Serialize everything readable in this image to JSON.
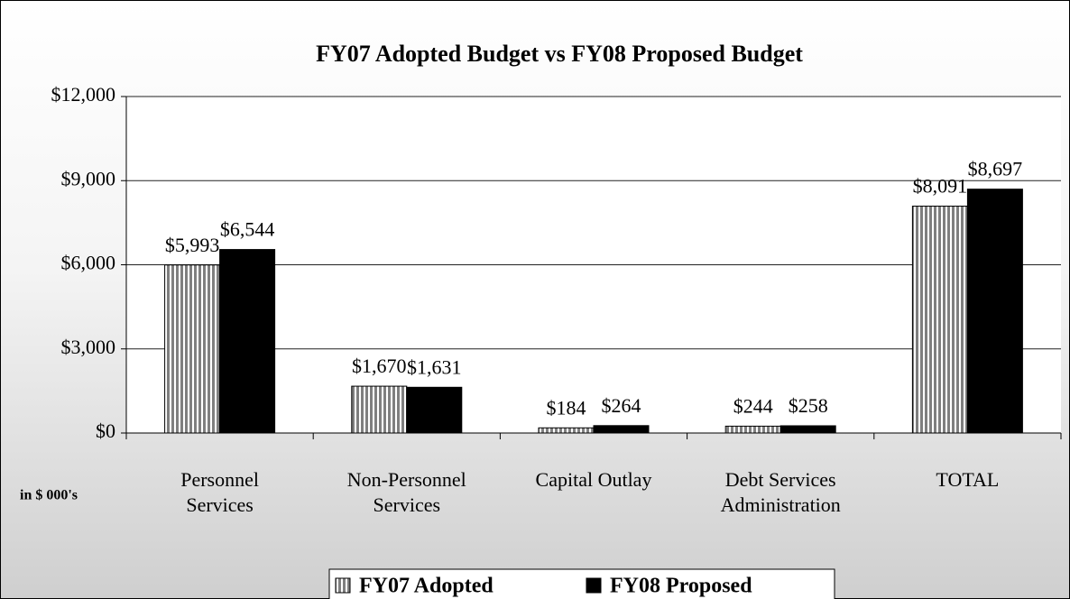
{
  "chart_data": {
    "type": "bar",
    "title": "FY07 Adopted Budget vs FY08 Proposed Budget",
    "annotation": "in $ 000's",
    "categories": [
      "Personnel\nServices",
      "Non-Personnel\nServices",
      "Capital Outlay",
      "Debt Services\nAdministration",
      "TOTAL"
    ],
    "series": [
      {
        "name": "FY07 Adopted",
        "color": "#7f7f7f",
        "pattern": "vertical-stripes",
        "values": [
          5993,
          1670,
          184,
          244,
          8091
        ],
        "value_labels": [
          "$5,993",
          "$1,670",
          "$184",
          "$244",
          "$8,091"
        ]
      },
      {
        "name": "FY08 Proposed",
        "color": "#000000",
        "values": [
          6544,
          1631,
          264,
          258,
          8697
        ],
        "value_labels": [
          "$6,544",
          "$1,631",
          "$264",
          "$258",
          "$8,697"
        ]
      }
    ],
    "ylim": [
      0,
      12000
    ],
    "yticks": [
      {
        "value": 0,
        "label": "$0"
      },
      {
        "value": 3000,
        "label": "$3,000"
      },
      {
        "value": 6000,
        "label": "$6,000"
      },
      {
        "value": 9000,
        "label": "$9,000"
      },
      {
        "value": 12000,
        "label": "$12,000"
      }
    ],
    "grid": true,
    "legend": "bottom"
  }
}
